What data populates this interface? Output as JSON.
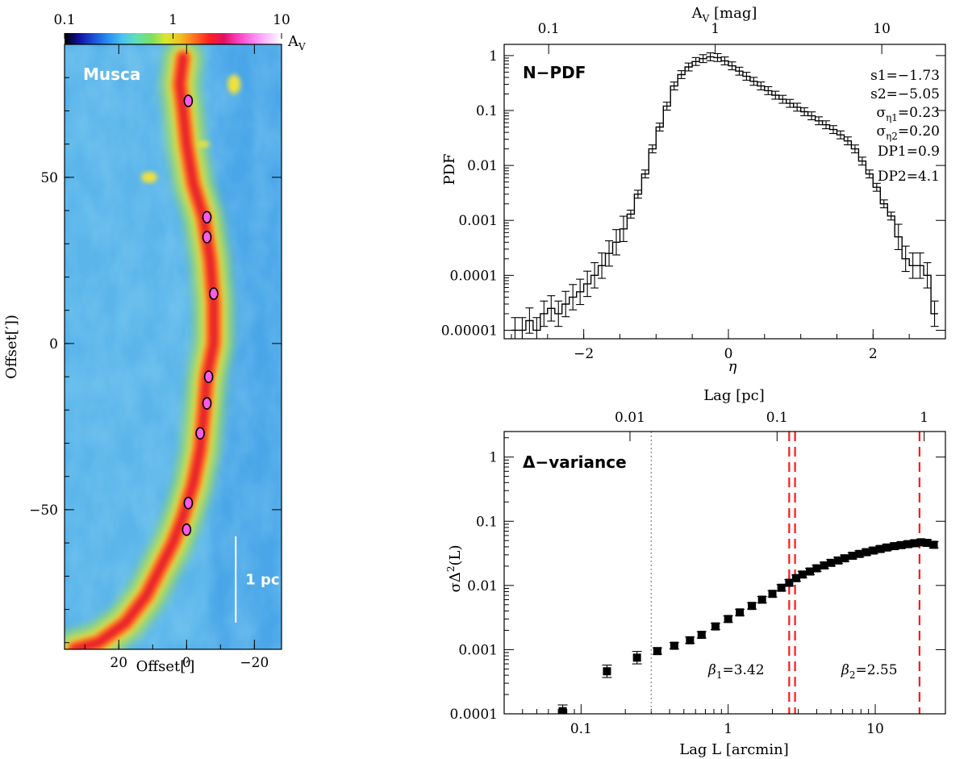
{
  "colors": {
    "map_bg": "#4aa6e8",
    "map_sky": "#69c3ec",
    "filament_outer": "#8fd86b",
    "filament_mid": "#f0e23c",
    "filament_inner": "#ff7a22",
    "filament_core": "#e8222a",
    "clump": "#ff5ae8",
    "scale_bar": "#ffffff",
    "dash_red": "#ff1a1a",
    "dotted_gray": "#999999"
  },
  "chart_data": [
    {
      "type": "heatmap",
      "name": "Musca Av map",
      "label": "Musca",
      "colorbar": {
        "ticks": [
          "0.1",
          "1",
          "10"
        ],
        "label_main": "A",
        "label_sub": "V",
        "range": [
          0.1,
          10
        ],
        "stops": [
          "#000000",
          "#1010a0",
          "#1a4fd8",
          "#2a8ef0",
          "#4ac4f0",
          "#60e0b0",
          "#7ae060",
          "#d8e830",
          "#f0c020",
          "#ff7020",
          "#ff2020",
          "#e01060",
          "#ff40c0",
          "#ff80f0",
          "#ffc0ff",
          "#ffffff"
        ]
      },
      "xlabel": "Offset[′]",
      "ylabel": "Offset[′])",
      "xlim": [
        36,
        -28
      ],
      "ylim": [
        -92,
        90
      ],
      "x_ticks": [
        {
          "value": 20,
          "label": "20"
        },
        {
          "value": 0,
          "label": "0"
        },
        {
          "value": -20,
          "label": "−20"
        }
      ],
      "y_ticks": [
        {
          "value": 50,
          "label": "50"
        },
        {
          "value": 0,
          "label": "0"
        },
        {
          "value": -50,
          "label": "−50"
        }
      ],
      "scale_bar": {
        "label": "1 pc",
        "x": -14.5,
        "y_from": -84,
        "y_to": -58
      },
      "filament_spine": [
        [
          1,
          86
        ],
        [
          2,
          78
        ],
        [
          1,
          70
        ],
        [
          0,
          60
        ],
        [
          -2,
          48
        ],
        [
          -5,
          38
        ],
        [
          -7,
          25
        ],
        [
          -8,
          12
        ],
        [
          -8,
          0
        ],
        [
          -6,
          -10
        ],
        [
          -5,
          -22
        ],
        [
          -4,
          -32
        ],
        [
          -2,
          -42
        ],
        [
          1,
          -52
        ],
        [
          4,
          -60
        ],
        [
          8,
          -68
        ],
        [
          12,
          -76
        ],
        [
          18,
          -84
        ],
        [
          26,
          -90
        ],
        [
          33,
          -92
        ]
      ],
      "clumps": [
        [
          -0.5,
          73
        ],
        [
          -6,
          38
        ],
        [
          -6,
          32
        ],
        [
          -8,
          15
        ],
        [
          -6,
          -18
        ],
        [
          -6.5,
          -10
        ],
        [
          -4,
          -27
        ],
        [
          -0.5,
          -48
        ],
        [
          0,
          -56
        ]
      ]
    },
    {
      "type": "line",
      "name": "N-PDF",
      "title": "N−PDF",
      "xlabel": "η",
      "ylabel": "PDF",
      "top_axis_label": "A",
      "top_axis_label_sub": "V",
      "top_axis_unit": "[mag]",
      "top_ticks": [
        "0.1",
        "1",
        "10"
      ],
      "xlim": [
        -3.1,
        3.0
      ],
      "ylim": [
        7e-06,
        1.6
      ],
      "x_ticks": [
        "−2",
        "0",
        "2"
      ],
      "y_ticks": [
        "1",
        "0.1",
        "0.01",
        "0.001",
        "0.0001",
        "0.00001"
      ],
      "annotations": [
        "s1=−1.73",
        "s2=−5.05",
        "σ_η1=0.23",
        "σ_η2=0.20",
        "DP1=0.9",
        "DP2=4.1"
      ],
      "eta": [
        -2.95,
        -2.85,
        -2.75,
        -2.65,
        -2.55,
        -2.45,
        -2.35,
        -2.25,
        -2.15,
        -2.05,
        -1.95,
        -1.85,
        -1.75,
        -1.65,
        -1.55,
        -1.45,
        -1.35,
        -1.25,
        -1.15,
        -1.05,
        -0.95,
        -0.85,
        -0.75,
        -0.65,
        -0.55,
        -0.45,
        -0.35,
        -0.25,
        -0.15,
        -0.05,
        0.05,
        0.15,
        0.25,
        0.35,
        0.45,
        0.55,
        0.65,
        0.75,
        0.85,
        0.95,
        1.05,
        1.15,
        1.25,
        1.35,
        1.45,
        1.55,
        1.65,
        1.75,
        1.85,
        1.95,
        2.05,
        2.15,
        2.25,
        2.35,
        2.45,
        2.55,
        2.65,
        2.75,
        2.85
      ],
      "pdf": [
        1e-05,
        1e-05,
        1.5e-05,
        1e-05,
        2e-05,
        2.5e-05,
        2e-05,
        3e-05,
        4e-05,
        5e-05,
        7e-05,
        0.0001,
        0.00015,
        0.00025,
        0.0004,
        0.0007,
        0.0013,
        0.003,
        0.007,
        0.02,
        0.05,
        0.12,
        0.28,
        0.45,
        0.62,
        0.78,
        0.88,
        0.95,
        0.92,
        0.8,
        0.65,
        0.52,
        0.42,
        0.34,
        0.28,
        0.23,
        0.19,
        0.16,
        0.135,
        0.115,
        0.095,
        0.08,
        0.065,
        0.055,
        0.045,
        0.036,
        0.028,
        0.02,
        0.012,
        0.007,
        0.004,
        0.002,
        0.0012,
        0.0005,
        0.0002,
        0.00015,
        0.00015,
        0.0001,
        2e-05
      ]
    },
    {
      "type": "scatter",
      "name": "Delta-variance",
      "title": "Δ−variance",
      "xlabel": "Lag L [arcmin]",
      "ylabel": "σΔ²(L)",
      "top_axis_label": "Lag [pc]",
      "top_ticks": [
        "0.01",
        "0.1",
        "1"
      ],
      "xlim": [
        0.03,
        30
      ],
      "ylim": [
        0.0001,
        2.5
      ],
      "x_ticks": [
        "0.1",
        "1",
        "10"
      ],
      "y_ticks": [
        "1",
        "0.1",
        "0.01",
        "0.001",
        "0.0001"
      ],
      "annotations": [
        "β₁=3.42",
        "β₂=2.55"
      ],
      "vlines_dashed_red": [
        2.6,
        2.85,
        20
      ],
      "vline_dotted_gray": 0.3,
      "lag": [
        0.075,
        0.15,
        0.24,
        0.33,
        0.43,
        0.55,
        0.66,
        0.82,
        1.0,
        1.2,
        1.45,
        1.7,
        2.0,
        2.3,
        2.6,
        2.9,
        3.2,
        3.6,
        4.0,
        4.5,
        5.0,
        5.6,
        6.2,
        7.0,
        7.8,
        8.7,
        9.7,
        10.8,
        12.0,
        13.5,
        15.0,
        16.7,
        18.5,
        20.5,
        22.5,
        25.0
      ],
      "sigma": [
        0.00011,
        0.00046,
        0.00075,
        0.00095,
        0.00115,
        0.0014,
        0.0017,
        0.0023,
        0.003,
        0.0038,
        0.0048,
        0.006,
        0.0074,
        0.0092,
        0.011,
        0.013,
        0.0148,
        0.0165,
        0.0185,
        0.0205,
        0.0225,
        0.0245,
        0.0265,
        0.029,
        0.031,
        0.033,
        0.035,
        0.037,
        0.039,
        0.041,
        0.0425,
        0.044,
        0.0455,
        0.047,
        0.046,
        0.043
      ]
    }
  ]
}
